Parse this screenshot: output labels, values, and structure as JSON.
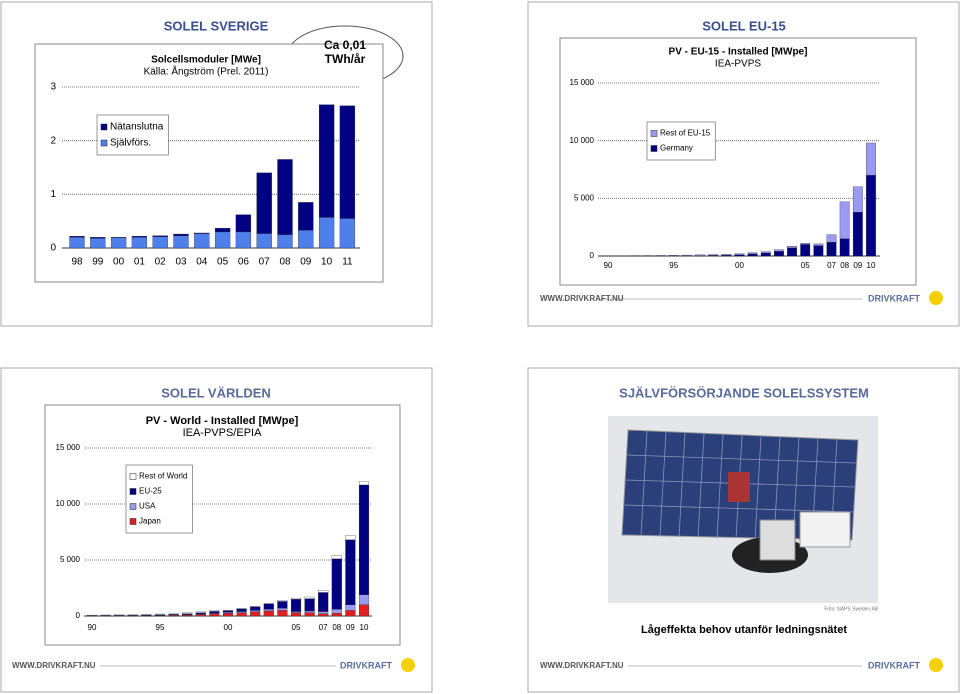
{
  "chart_data": [
    {
      "type": "bar",
      "slide_title": "SOLEL SVERIGE",
      "title": "Solcellsmoduler  [MWe]",
      "subtitle": "Källa: Ångström  (Prel. 2011)",
      "annotation": "Ca 0,01 TWh/år",
      "categories": [
        "98",
        "99",
        "00",
        "01",
        "02",
        "03",
        "04",
        "05",
        "06",
        "07",
        "08",
        "09",
        "10",
        "11"
      ],
      "series": [
        {
          "name": "Nätanslutna",
          "color": "#000080",
          "values": [
            0.02,
            0.02,
            0.01,
            0.02,
            0.02,
            0.03,
            0.01,
            0.07,
            0.32,
            1.13,
            1.4,
            0.52,
            2.1,
            2.1
          ]
        },
        {
          "name": "Självförs.",
          "color": "#4f7fe8",
          "values": [
            0.2,
            0.18,
            0.19,
            0.2,
            0.21,
            0.23,
            0.27,
            0.3,
            0.3,
            0.27,
            0.25,
            0.33,
            0.57,
            0.55
          ]
        }
      ],
      "ylim": [
        0,
        3
      ],
      "yticks": [
        0,
        1,
        2,
        3
      ],
      "grid": true,
      "stacked": true,
      "legend": "top-left"
    },
    {
      "type": "bar",
      "slide_title": "SOLEL EU-15",
      "title": "PV - EU-15 - Installed [MWpe]",
      "subtitle": "IEA-PVPS",
      "categories": [
        "90",
        null,
        null,
        null,
        null,
        "95",
        null,
        null,
        null,
        null,
        "00",
        null,
        null,
        null,
        null,
        "05",
        null,
        "07",
        "08",
        "09",
        "10"
      ],
      "series": [
        {
          "name": "Rest of EU-15",
          "color": "#9a9af0",
          "values": [
            20,
            25,
            30,
            35,
            40,
            50,
            60,
            70,
            80,
            90,
            100,
            110,
            120,
            150,
            150,
            100,
            150,
            650,
            3200,
            2200,
            2800
          ]
        },
        {
          "name": "Germany",
          "color": "#000080",
          "values": [
            2,
            3,
            5,
            7,
            10,
            15,
            20,
            30,
            50,
            70,
            100,
            180,
            260,
            400,
            700,
            1000,
            900,
            1200,
            1500,
            3800,
            7000
          ]
        }
      ],
      "ylim": [
        0,
        15000
      ],
      "yticks": [
        0,
        {
          "value": 5000,
          "label": "5 000"
        },
        {
          "value": 10000,
          "label": "10 000"
        },
        {
          "value": 15000,
          "label": "15 000"
        }
      ],
      "grid": true,
      "stacked": true,
      "legend": "top-left"
    },
    {
      "type": "bar",
      "slide_title": "SOLEL VÄRLDEN",
      "title": "PV - World - Installed [MWpe]",
      "subtitle": "IEA-PVPS/EPIA",
      "categories": [
        "90",
        null,
        null,
        null,
        null,
        "95",
        null,
        null,
        null,
        null,
        "00",
        null,
        null,
        null,
        null,
        "05",
        null,
        "07",
        "08",
        "09",
        "10"
      ],
      "series": [
        {
          "name": "Rest of World",
          "color": "#ffffff",
          "values": [
            40,
            40,
            45,
            50,
            55,
            60,
            65,
            70,
            80,
            90,
            20,
            20,
            20,
            20,
            100,
            100,
            150,
            200,
            300,
            400,
            300
          ]
        },
        {
          "name": "EU-25",
          "color": "#000080",
          "values": [
            20,
            25,
            30,
            35,
            40,
            50,
            60,
            80,
            110,
            150,
            150,
            230,
            330,
            480,
            600,
            1100,
            1100,
            1700,
            4500,
            5800,
            9800
          ]
        },
        {
          "name": "USA",
          "color": "#9a9af0",
          "values": [
            10,
            12,
            15,
            18,
            20,
            25,
            30,
            40,
            50,
            60,
            80,
            100,
            120,
            150,
            200,
            100,
            150,
            200,
            350,
            500,
            900
          ]
        },
        {
          "name": "Japan",
          "color": "#e02020",
          "values": [
            10,
            15,
            20,
            25,
            30,
            40,
            60,
            90,
            130,
            200,
            250,
            300,
            380,
            450,
            500,
            300,
            300,
            200,
            250,
            500,
            1000
          ]
        }
      ],
      "ylim": [
        0,
        15000
      ],
      "yticks": [
        0,
        {
          "value": 5000,
          "label": "5 000"
        },
        {
          "value": 10000,
          "label": "10 000"
        },
        {
          "value": 15000,
          "label": "15 000"
        }
      ],
      "grid": true,
      "stacked": true,
      "legend": "top-left"
    }
  ],
  "footer": {
    "url": "WWW.DRIVKRAFT.NU",
    "brand": "DRIVKRAFT"
  },
  "photo_slide": {
    "title": "SJÄLVFÖRSÖRJANDE SOLELSSYSTEM",
    "credit": "Foto: NAPS Sweden AB",
    "caption": "Lågeffekta behov utanför ledningsnätet"
  }
}
